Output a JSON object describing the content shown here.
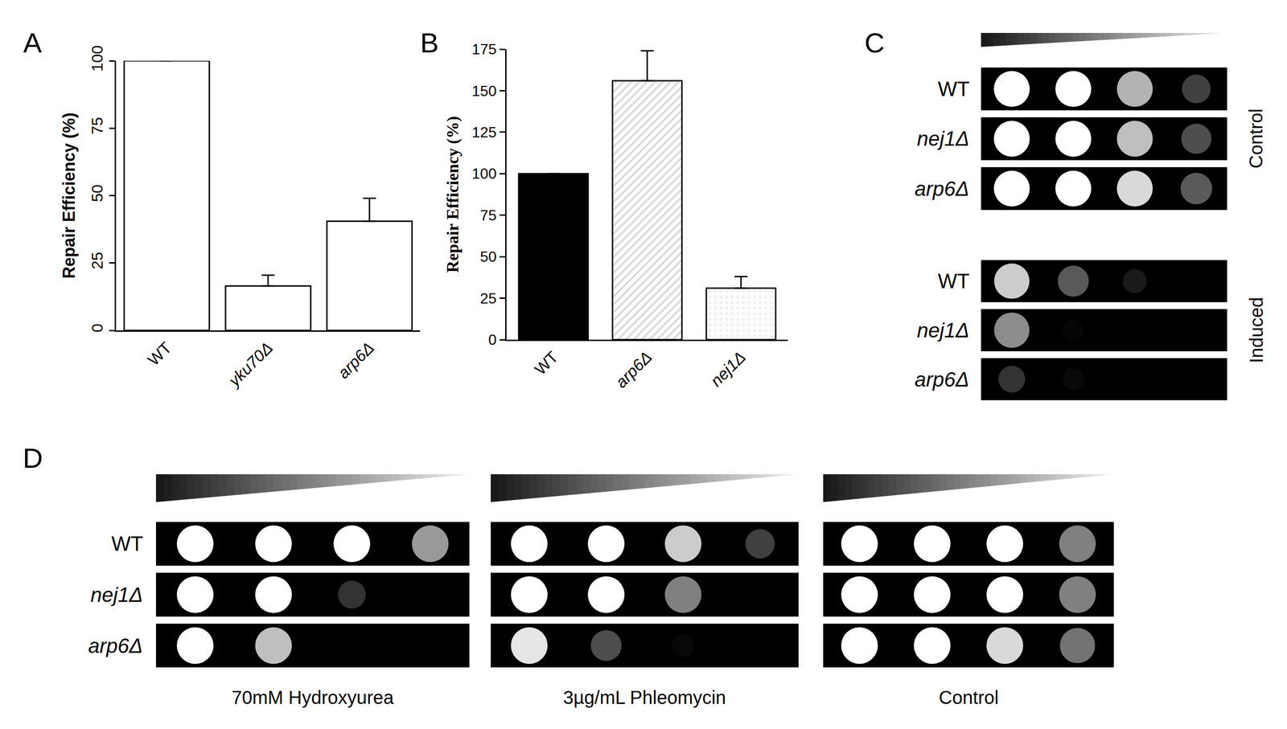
{
  "chart_data": [
    {
      "panel": "A",
      "type": "bar",
      "y_label": "Repair Efficiency (%)",
      "categories": [
        "WT",
        "yku70Δ",
        "arp6Δ"
      ],
      "values": [
        100,
        16.5,
        40.5
      ],
      "errors": [
        0,
        4,
        8.5
      ],
      "colors": [
        "#ffffff",
        "#ffffff",
        "#ffffff"
      ],
      "ylim": [
        0,
        100
      ],
      "yticks": [
        0,
        25,
        50,
        75,
        100
      ],
      "grid": false
    },
    {
      "panel": "B",
      "type": "bar",
      "y_label": "Repair Efficiency (%)",
      "categories": [
        "WT",
        "arp6Δ",
        "nej1Δ"
      ],
      "values": [
        100,
        156,
        31
      ],
      "errors": [
        0,
        18,
        7
      ],
      "colors": [
        "#000000",
        "#d9d9d9",
        "#f2f2f2"
      ],
      "ylim": [
        0,
        175
      ],
      "yticks": [
        0,
        25,
        50,
        75,
        100,
        125,
        150,
        175
      ],
      "grid": false
    },
    {
      "panel": "C",
      "type": "spot_assay",
      "rows": [
        "WT",
        "nej1Δ",
        "arp6Δ"
      ],
      "groups": [
        {
          "name": "Control",
          "growth": [
            [
              1,
              1,
              0.7,
              0.25
            ],
            [
              1,
              1,
              0.75,
              0.3
            ],
            [
              1,
              1,
              0.85,
              0.35
            ]
          ]
        },
        {
          "name": "Induced",
          "growth": [
            [
              0.8,
              0.35,
              0.1,
              0
            ],
            [
              0.55,
              0.02,
              0,
              0
            ],
            [
              0.2,
              0.03,
              0,
              0
            ]
          ]
        }
      ]
    },
    {
      "panel": "D",
      "type": "spot_assay",
      "rows": [
        "WT",
        "nej1Δ",
        "arp6Δ"
      ],
      "groups": [
        {
          "name": "70mM Hydroxyurea",
          "growth": [
            [
              1,
              1,
              1,
              0.6
            ],
            [
              1,
              1,
              0.2,
              0
            ],
            [
              1,
              0.75,
              0,
              0
            ]
          ]
        },
        {
          "name": "3µg/mL Phleomycin",
          "growth": [
            [
              1,
              1,
              0.8,
              0.25
            ],
            [
              1,
              1,
              0.5,
              0
            ],
            [
              0.9,
              0.3,
              0.03,
              0
            ]
          ]
        },
        {
          "name": "Control",
          "growth": [
            [
              1,
              1,
              1,
              0.5
            ],
            [
              1,
              1,
              1,
              0.5
            ],
            [
              1,
              1,
              0.85,
              0.45
            ]
          ]
        }
      ]
    }
  ]
}
